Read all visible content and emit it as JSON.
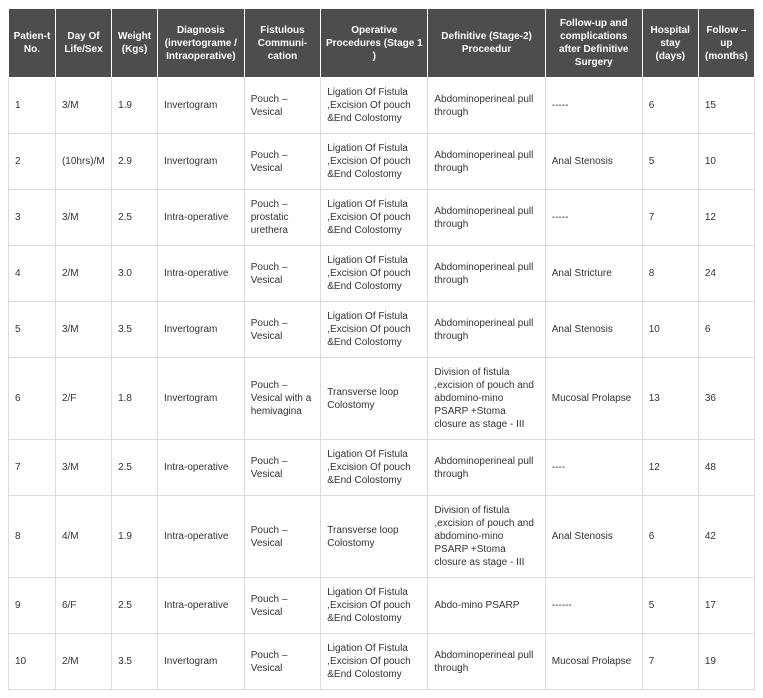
{
  "table": {
    "header_bg": "#4d4d4d",
    "header_fg": "#ffffff",
    "border_color": "#dcdcdc",
    "font_family": "Arial",
    "font_size_header": 10,
    "font_size_cell": 10,
    "columns": [
      "Patien-t No.",
      "Day Of Life/Sex",
      "Weight (Kgs)",
      "Diagnosis (invertograme / Intraoperative)",
      "Fistulous Communi-cation",
      "Operative Procedures (Stage 1 )",
      "Definitive (Stage-2) Proceedur",
      "Follow-up and complications after Definitive Surgery",
      "Hospital stay (days)",
      "Follow –up (months)"
    ],
    "rows": [
      [
        "1",
        "3/M",
        "1.9",
        "Invertogram",
        "Pouch – Vesical",
        " Ligation Of Fistula ,Excision Of pouch &End Colostomy",
        "Abdominoperineal pull through",
        "-----",
        "6",
        "15"
      ],
      [
        "2",
        "(10hrs)/M",
        "2.9",
        "Invertogram",
        "Pouch – Vesical",
        "Ligation Of Fistula ,Excision Of pouch &End Colostomy",
        "Abdominoperineal pull through",
        "Anal Stenosis",
        "5",
        "10"
      ],
      [
        "3",
        "3/M",
        "2.5",
        "Intra-operative",
        "Pouch – prostatic urethera",
        "Ligation Of Fistula ,Excision Of pouch &End Colostomy",
        "Abdominoperineal pull through",
        "-----",
        "7",
        "12"
      ],
      [
        "4",
        "2/M",
        "3.0",
        "Intra-operative",
        "Pouch – Vesical",
        "Ligation Of Fistula ,Excision Of pouch &End Colostomy",
        "Abdominoperineal pull through",
        "Anal Stricture",
        "8",
        "24"
      ],
      [
        "5",
        "3/M",
        "3.5",
        "Invertogram",
        "Pouch – Vesical",
        "Ligation Of Fistula ,Excision Of pouch &End Colostomy",
        "Abdominoperineal pull through",
        "Anal Stenosis",
        "10",
        "6"
      ],
      [
        "6",
        "2/F",
        "1.8",
        "Invertogram",
        "Pouch – Vesical with a hemivagina",
        "Transverse loop Colostomy",
        "Division of fistula ,excision of pouch and abdomino-mino PSARP +Stoma closure as stage - III",
        "Mucosal Prolapse",
        "13",
        "36"
      ],
      [
        "7",
        "3/M",
        "2.5",
        "Intra-operative",
        "Pouch – Vesical",
        "Ligation Of Fistula ,Excision Of pouch &End Colostomy",
        "Abdominoperineal pull through",
        "----",
        "12",
        "48"
      ],
      [
        "8",
        "4/M",
        "1.9",
        "Intra-operative",
        "Pouch – Vesical",
        "Transverse loop Colostomy",
        "Division of fistula ,excision of pouch and abdomino-mino PSARP +Stoma closure as stage - III",
        "Anal Stenosis",
        "6",
        "42"
      ],
      [
        "9",
        "6/F",
        "2.5",
        "Intra-operative",
        "Pouch – Vesical",
        "Ligation Of Fistula ,Excision Of pouch &End Colostomy",
        "Abdo-mino PSARP",
        "------",
        "5",
        "17"
      ],
      [
        "10",
        "2/M",
        "3.5",
        "Invertogram",
        "Pouch – Vesical",
        "Ligation Of Fistula ,Excision Of pouch &End Colostomy",
        "Abdominoperineal pull through",
        "Mucosal Prolapse",
        "7",
        "19"
      ]
    ]
  }
}
